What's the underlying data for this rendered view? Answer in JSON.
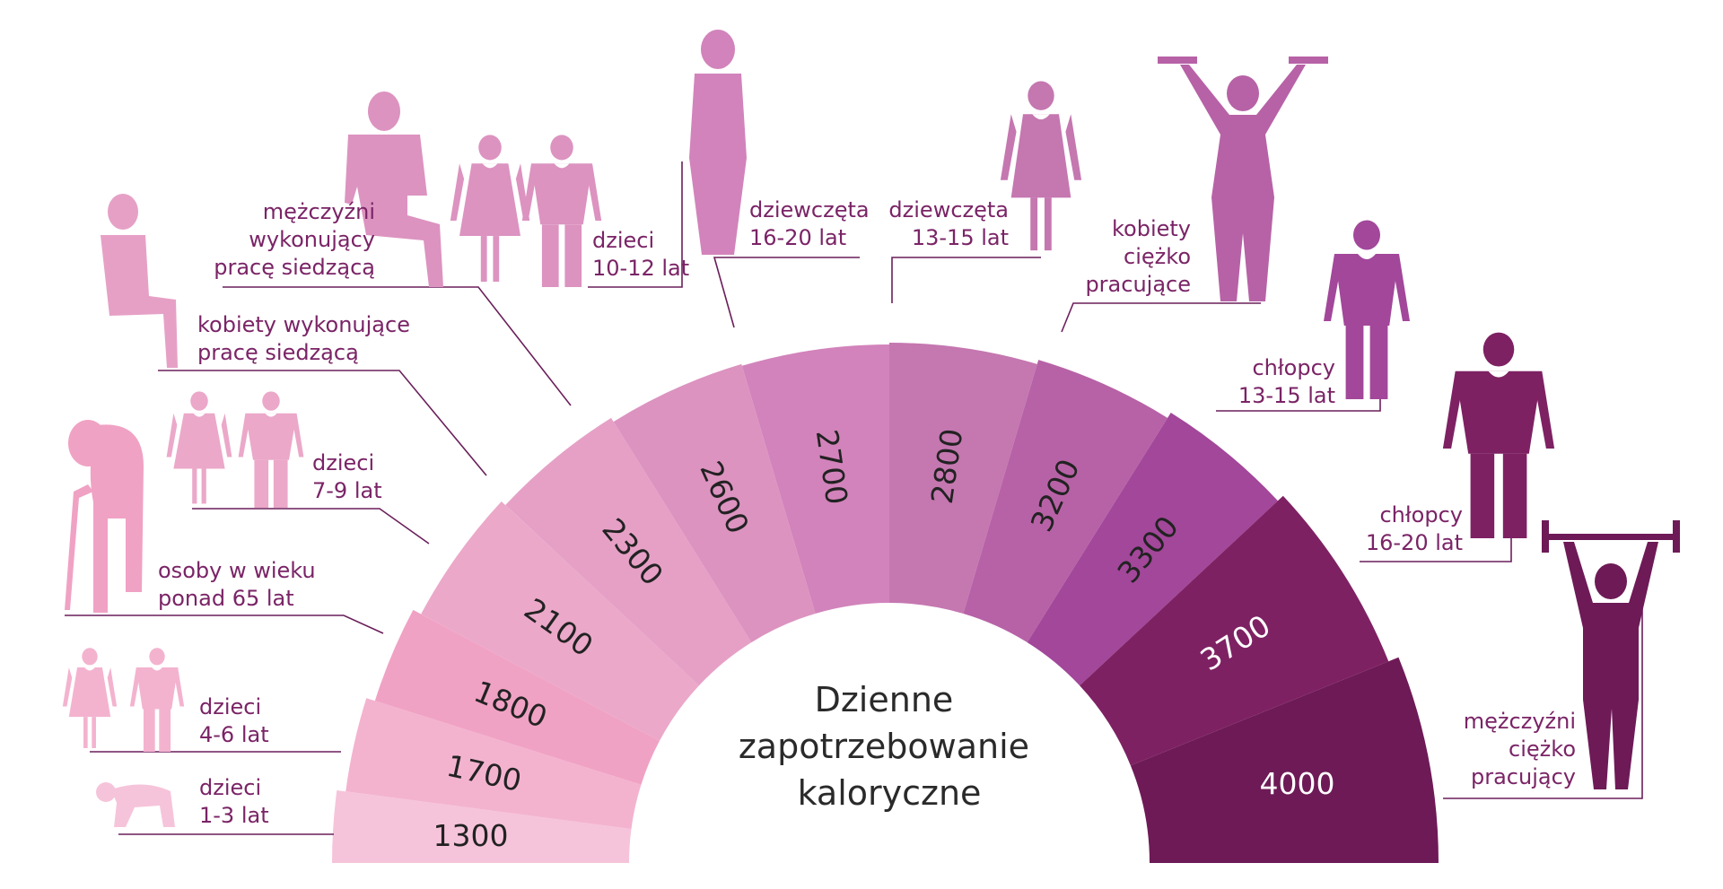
{
  "title_lines": [
    "Dzienne",
    "zapotrzebowanie",
    "kaloryczne"
  ],
  "chart_data": {
    "type": "semicircle-segments",
    "unit": "",
    "segments": [
      {
        "value": 1300,
        "group": [
          "dzieci",
          "1-3 lat"
        ],
        "color": "#f6c4da",
        "label_color": "#222222",
        "icon": "crawling-baby-icon"
      },
      {
        "value": 1700,
        "group": [
          "dzieci",
          "4-6 lat"
        ],
        "color": "#f3b3cf",
        "label_color": "#222222",
        "icon": "small-children-icon"
      },
      {
        "value": 1800,
        "group": [
          "osoby w wieku",
          "ponad 65 lat"
        ],
        "color": "#f0a2c4",
        "label_color": "#222222",
        "icon": "elderly-with-cane-icon"
      },
      {
        "value": 2100,
        "group": [
          "dzieci",
          "7-9 lat"
        ],
        "color": "#eba8c9",
        "label_color": "#222222",
        "icon": "children-icon"
      },
      {
        "value": 2300,
        "group": [
          "kobiety wykonujące",
          "pracę siedzącą"
        ],
        "color": "#e6a0c6",
        "label_color": "#222222",
        "icon": "sitting-woman-icon"
      },
      {
        "value": 2600,
        "group": [
          "mężczyźni",
          "wykonujący",
          "pracę siedzącą"
        ],
        "color": "#dc93c0",
        "label_color": "#222222",
        "icon": "sitting-man-icon"
      },
      {
        "value": 2700,
        "group": [
          "dziewczęta",
          "16-20 lat"
        ],
        "color": "#d283bb",
        "label_color": "#222222",
        "icon": "young-woman-icon"
      },
      {
        "value": 2800,
        "group": [
          "dziewczęta",
          "13-15 lat"
        ],
        "color": "#c577b0",
        "label_color": "#222222",
        "icon": "teen-girl-icon"
      },
      {
        "value": 3200,
        "group": [
          "kobiety",
          "ciężko",
          "pracujące"
        ],
        "color": "#b762a6",
        "label_color": "#222222",
        "icon": "woman-dumbbells-icon"
      },
      {
        "value": 3300,
        "group": [
          "chłopcy",
          "13-15 lat"
        ],
        "color": "#a2479a",
        "label_color": "#222222",
        "icon": "teen-boy-icon"
      },
      {
        "value": 3700,
        "group": [
          "chłopcy",
          "16-20 lat"
        ],
        "color": "#7e2163",
        "label_color": "#ffffff",
        "icon": "young-man-icon"
      },
      {
        "value": 4000,
        "group": [
          "mężczyźni",
          "ciężko",
          "pracujący"
        ],
        "color": "#6e1a57",
        "label_color": "#ffffff",
        "icon": "man-barbell-icon"
      }
    ]
  }
}
